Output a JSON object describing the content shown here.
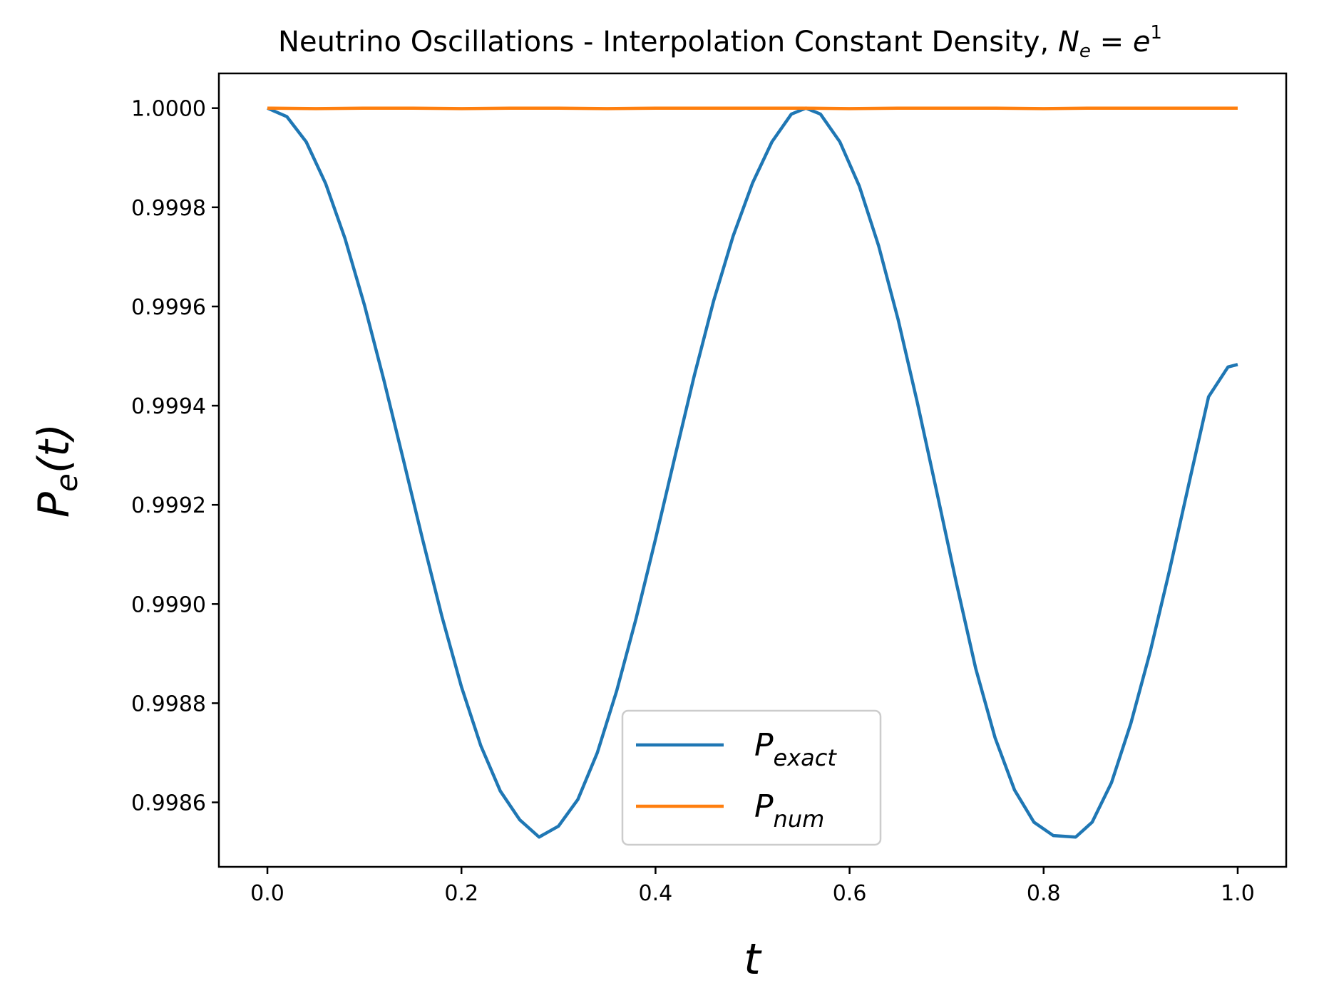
{
  "chart_data": {
    "type": "line",
    "title": {
      "prefix": "Neutrino Oscillations - Interpolation Constant Density, ",
      "math_var": "N",
      "math_sub": "e",
      "math_eq": " = ",
      "math_base": "e",
      "math_sup": "1"
    },
    "xlabel": "t",
    "ylabel": {
      "base": "P",
      "sub": "e",
      "rest": "(t)"
    },
    "xlim": [
      -0.05,
      1.05
    ],
    "ylim": [
      0.99847,
      1.00007
    ],
    "xticks": [
      {
        "value": 0.0,
        "label": "0.0"
      },
      {
        "value": 0.2,
        "label": "0.2"
      },
      {
        "value": 0.4,
        "label": "0.4"
      },
      {
        "value": 0.6,
        "label": "0.6"
      },
      {
        "value": 0.8,
        "label": "0.8"
      },
      {
        "value": 1.0,
        "label": "1.0"
      }
    ],
    "yticks": [
      {
        "value": 0.9986,
        "label": "0.9986"
      },
      {
        "value": 0.9988,
        "label": "0.9988"
      },
      {
        "value": 0.999,
        "label": "0.9990"
      },
      {
        "value": 0.9992,
        "label": "0.9992"
      },
      {
        "value": 0.9994,
        "label": "0.9994"
      },
      {
        "value": 0.9996,
        "label": "0.9996"
      },
      {
        "value": 0.9998,
        "label": "0.9998"
      },
      {
        "value": 1.0,
        "label": "1.0000"
      }
    ],
    "grid": false,
    "legend_position": "lower-center",
    "series": [
      {
        "name": "exact",
        "legend": {
          "base": "P",
          "sub": "exact"
        },
        "color": "#1f77b4",
        "x": [
          0.0,
          0.02,
          0.04,
          0.06,
          0.08,
          0.1,
          0.12,
          0.14,
          0.16,
          0.18,
          0.2,
          0.22,
          0.24,
          0.26,
          0.28,
          0.3,
          0.32,
          0.34,
          0.36,
          0.38,
          0.4,
          0.42,
          0.44,
          0.46,
          0.48,
          0.5,
          0.52,
          0.54,
          0.555,
          0.57,
          0.59,
          0.61,
          0.63,
          0.65,
          0.67,
          0.69,
          0.71,
          0.73,
          0.75,
          0.77,
          0.79,
          0.81,
          0.833,
          0.85,
          0.87,
          0.89,
          0.91,
          0.93,
          0.95,
          0.97,
          0.99,
          1.0
        ],
        "y": [
          1.0,
          0.999983,
          0.999932,
          0.999848,
          0.999737,
          0.999603,
          0.999452,
          0.999292,
          0.99913,
          0.998974,
          0.998833,
          0.998714,
          0.998623,
          0.998565,
          0.99853,
          0.998552,
          0.998606,
          0.9987,
          0.998825,
          0.998971,
          0.999131,
          0.999297,
          0.999461,
          0.999612,
          0.999742,
          0.999849,
          0.999932,
          0.999988,
          1.0,
          0.999988,
          0.999932,
          0.999843,
          0.999722,
          0.999574,
          0.999405,
          0.999225,
          0.999043,
          0.99887,
          0.99873,
          0.998625,
          0.99856,
          0.998533,
          0.99853,
          0.99856,
          0.99864,
          0.99876,
          0.998905,
          0.99907,
          0.999245,
          0.999418,
          0.999478,
          0.999483
        ]
      },
      {
        "name": "num",
        "legend": {
          "base": "P",
          "sub": "num"
        },
        "color": "#ff7f0e",
        "x": [
          0.0,
          0.05,
          0.1,
          0.15,
          0.2,
          0.25,
          0.3,
          0.35,
          0.4,
          0.45,
          0.5,
          0.55,
          0.6,
          0.65,
          0.7,
          0.75,
          0.8,
          0.85,
          0.9,
          0.95,
          1.0
        ],
        "y": [
          1.0,
          0.999999,
          1.0,
          1.0,
          0.999999,
          1.0,
          1.0,
          0.999999,
          1.0,
          1.0,
          1.0,
          1.0,
          0.999999,
          1.0,
          1.0,
          1.0,
          0.999999,
          1.0,
          1.0,
          1.0,
          1.0
        ]
      }
    ]
  }
}
